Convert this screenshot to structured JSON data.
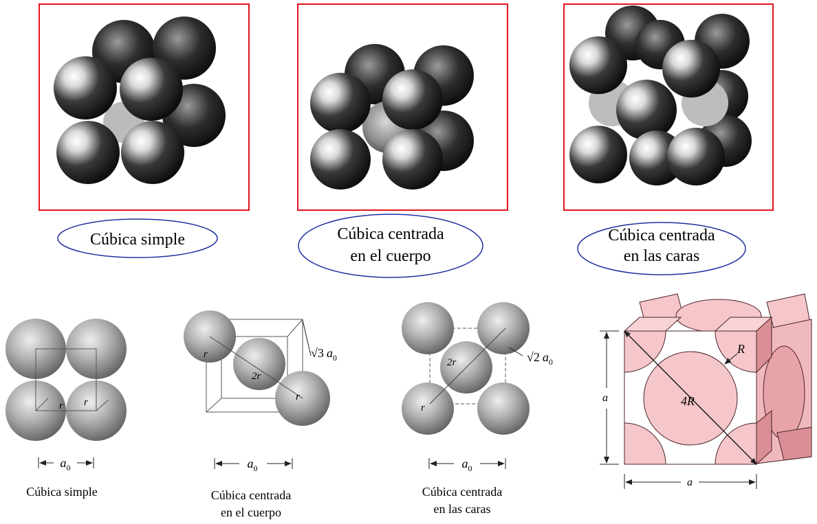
{
  "top_row": {
    "simple": {
      "label": "Cúbica simple"
    },
    "bcc": {
      "line1": "Cúbica centrada",
      "line2": "en el cuerpo"
    },
    "fcc": {
      "line1": "Cúbica centrada",
      "line2": "en las caras"
    }
  },
  "bottom_row": {
    "simple": {
      "label": "Cúbica simple",
      "dim": "a",
      "dim_sub": "0",
      "r1": "r",
      "r2": "r"
    },
    "bcc": {
      "line1": "Cúbica centrada",
      "line2": "en el cuerpo",
      "dim": "a",
      "dim_sub": "0",
      "diag": "√3",
      "diag_a": "a",
      "diag_sub": "0",
      "r1": "r",
      "r2": "2r",
      "r3": "r"
    },
    "fcc": {
      "line1": "Cúbica centrada",
      "line2": "en las caras",
      "dim": "a",
      "dim_sub": "0",
      "diag": "√2",
      "diag_a": "a",
      "diag_sub": "0",
      "r1": "2r",
      "r2": "r"
    }
  },
  "fcc_cell": {
    "radius_label": "R",
    "diag_label": "4R",
    "side_v": "a",
    "side_h": "a"
  },
  "colors": {
    "frame": "#e0141b",
    "ellipse": "#1e2fa0",
    "pink": "#f5c7ca",
    "pink_dark": "#d98f95",
    "pink_line": "#4a2226"
  }
}
